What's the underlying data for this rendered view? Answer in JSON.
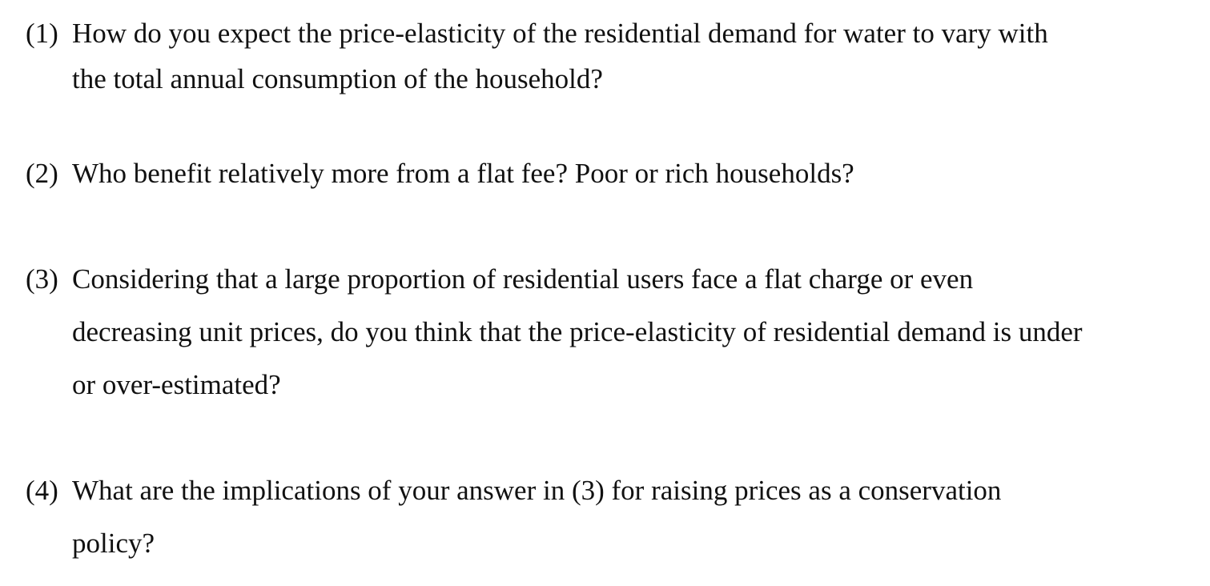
{
  "questions": [
    {
      "number": "(1)",
      "lines": [
        "How do you expect the price-elasticity of the residential demand for water to vary with",
        "the total annual consumption of the household?"
      ]
    },
    {
      "number": "(2)",
      "lines": [
        "Who benefit relatively more from a flat fee? Poor or rich households?"
      ]
    },
    {
      "number": "(3)",
      "lines": [
        "Considering that a large proportion of residential users face a flat charge or even",
        "decreasing unit prices, do you think that the price-elasticity of residential demand is under",
        "or over-estimated?"
      ]
    },
    {
      "number": "(4)",
      "lines": [
        "What are the implications of your answer in (3) for raising prices as a conservation",
        "policy?"
      ]
    }
  ]
}
